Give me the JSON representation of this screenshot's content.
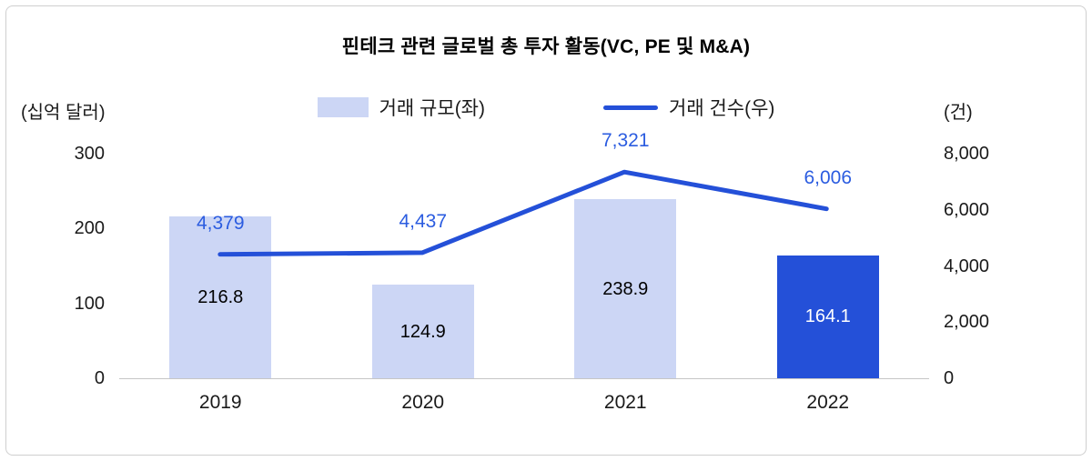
{
  "chart_data": {
    "type": "bar+line",
    "title": "핀테크 관련 글로벌 총 투자 활동(VC, PE 및 M&A)",
    "categories": [
      "2019",
      "2020",
      "2021",
      "2022"
    ],
    "series": [
      {
        "name": "거래 규모(좌)",
        "type": "bar",
        "axis": "left",
        "values": [
          216.8,
          124.9,
          238.9,
          164.1
        ],
        "labels": [
          "216.8",
          "124.9",
          "238.9",
          "164.1"
        ],
        "point_colors": [
          "#ccd6f5",
          "#ccd6f5",
          "#ccd6f5",
          "#2450d8"
        ],
        "label_colors": [
          "#000000",
          "#000000",
          "#000000",
          "#ffffff"
        ]
      },
      {
        "name": "거래 건수(우)",
        "type": "line",
        "axis": "right",
        "values": [
          4379,
          4437,
          7321,
          6006
        ],
        "labels": [
          "4,379",
          "4,437",
          "7,321",
          "6,006"
        ],
        "color": "#2450d8",
        "label_color": "#2b5ce0"
      }
    ],
    "left_axis": {
      "unit": "(십억 달러)",
      "min": 0,
      "max": 300,
      "ticks": [
        "0",
        "100",
        "200",
        "300"
      ]
    },
    "right_axis": {
      "unit": "(건)",
      "min": 0,
      "max": 8000,
      "ticks": [
        "0",
        "2,000",
        "4,000",
        "6,000",
        "8,000"
      ]
    },
    "legend_position": "top",
    "grid": false,
    "colors": {
      "bar_light": "#ccd6f5",
      "bar_highlight": "#2450d8",
      "line": "#2450d8",
      "line_label_text": "#2b5ce0",
      "baseline": "#c6c6c6"
    }
  }
}
